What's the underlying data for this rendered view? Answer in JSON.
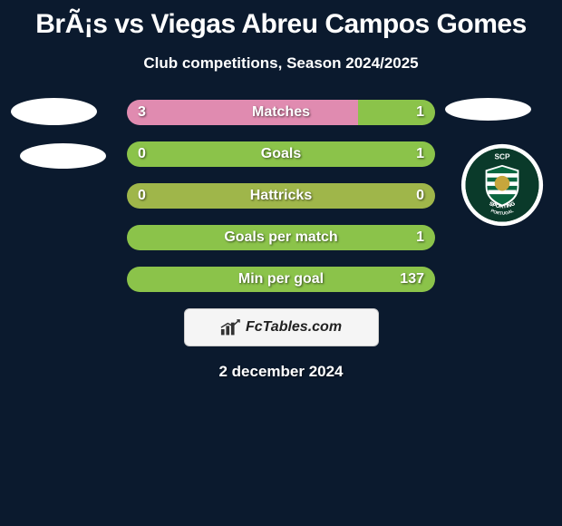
{
  "title": "BrÃ¡s vs Viegas Abreu Campos Gomes",
  "subtitle": "Club competitions, Season 2024/2025",
  "footer_brand": "FcTables.com",
  "footer_date": "2 december 2024",
  "colors": {
    "background": "#0b1a2e",
    "text": "#ffffff",
    "left_bar": "#e08bb0",
    "right_bar": "#8bc34a",
    "neutral_bar": "#9fb64a",
    "badge_dark": "#0a3a2a",
    "badge_gold": "#c7a63c",
    "badge_white": "#ffffff"
  },
  "stats": [
    {
      "label": "Matches",
      "left_value": "3",
      "right_value": "1",
      "left_pct": 75,
      "right_pct": 25,
      "left_color": "#e08bb0",
      "right_color": "#8bc34a"
    },
    {
      "label": "Goals",
      "left_value": "0",
      "right_value": "1",
      "left_pct": 0,
      "right_pct": 100,
      "left_color": "#e08bb0",
      "right_color": "#8bc34a"
    },
    {
      "label": "Hattricks",
      "left_value": "0",
      "right_value": "0",
      "left_pct": 50,
      "right_pct": 50,
      "left_color": "#9fb64a",
      "right_color": "#9fb64a"
    },
    {
      "label": "Goals per match",
      "left_value": "",
      "right_value": "1",
      "left_pct": 0,
      "right_pct": 100,
      "left_color": "#e08bb0",
      "right_color": "#8bc34a"
    },
    {
      "label": "Min per goal",
      "left_value": "",
      "right_value": "137",
      "left_pct": 0,
      "right_pct": 100,
      "left_color": "#e08bb0",
      "right_color": "#8bc34a"
    }
  ],
  "right_club": {
    "name": "Sporting CP",
    "initials": "SCP",
    "subtext": "SPORTING",
    "country": "PORTUGAL"
  }
}
